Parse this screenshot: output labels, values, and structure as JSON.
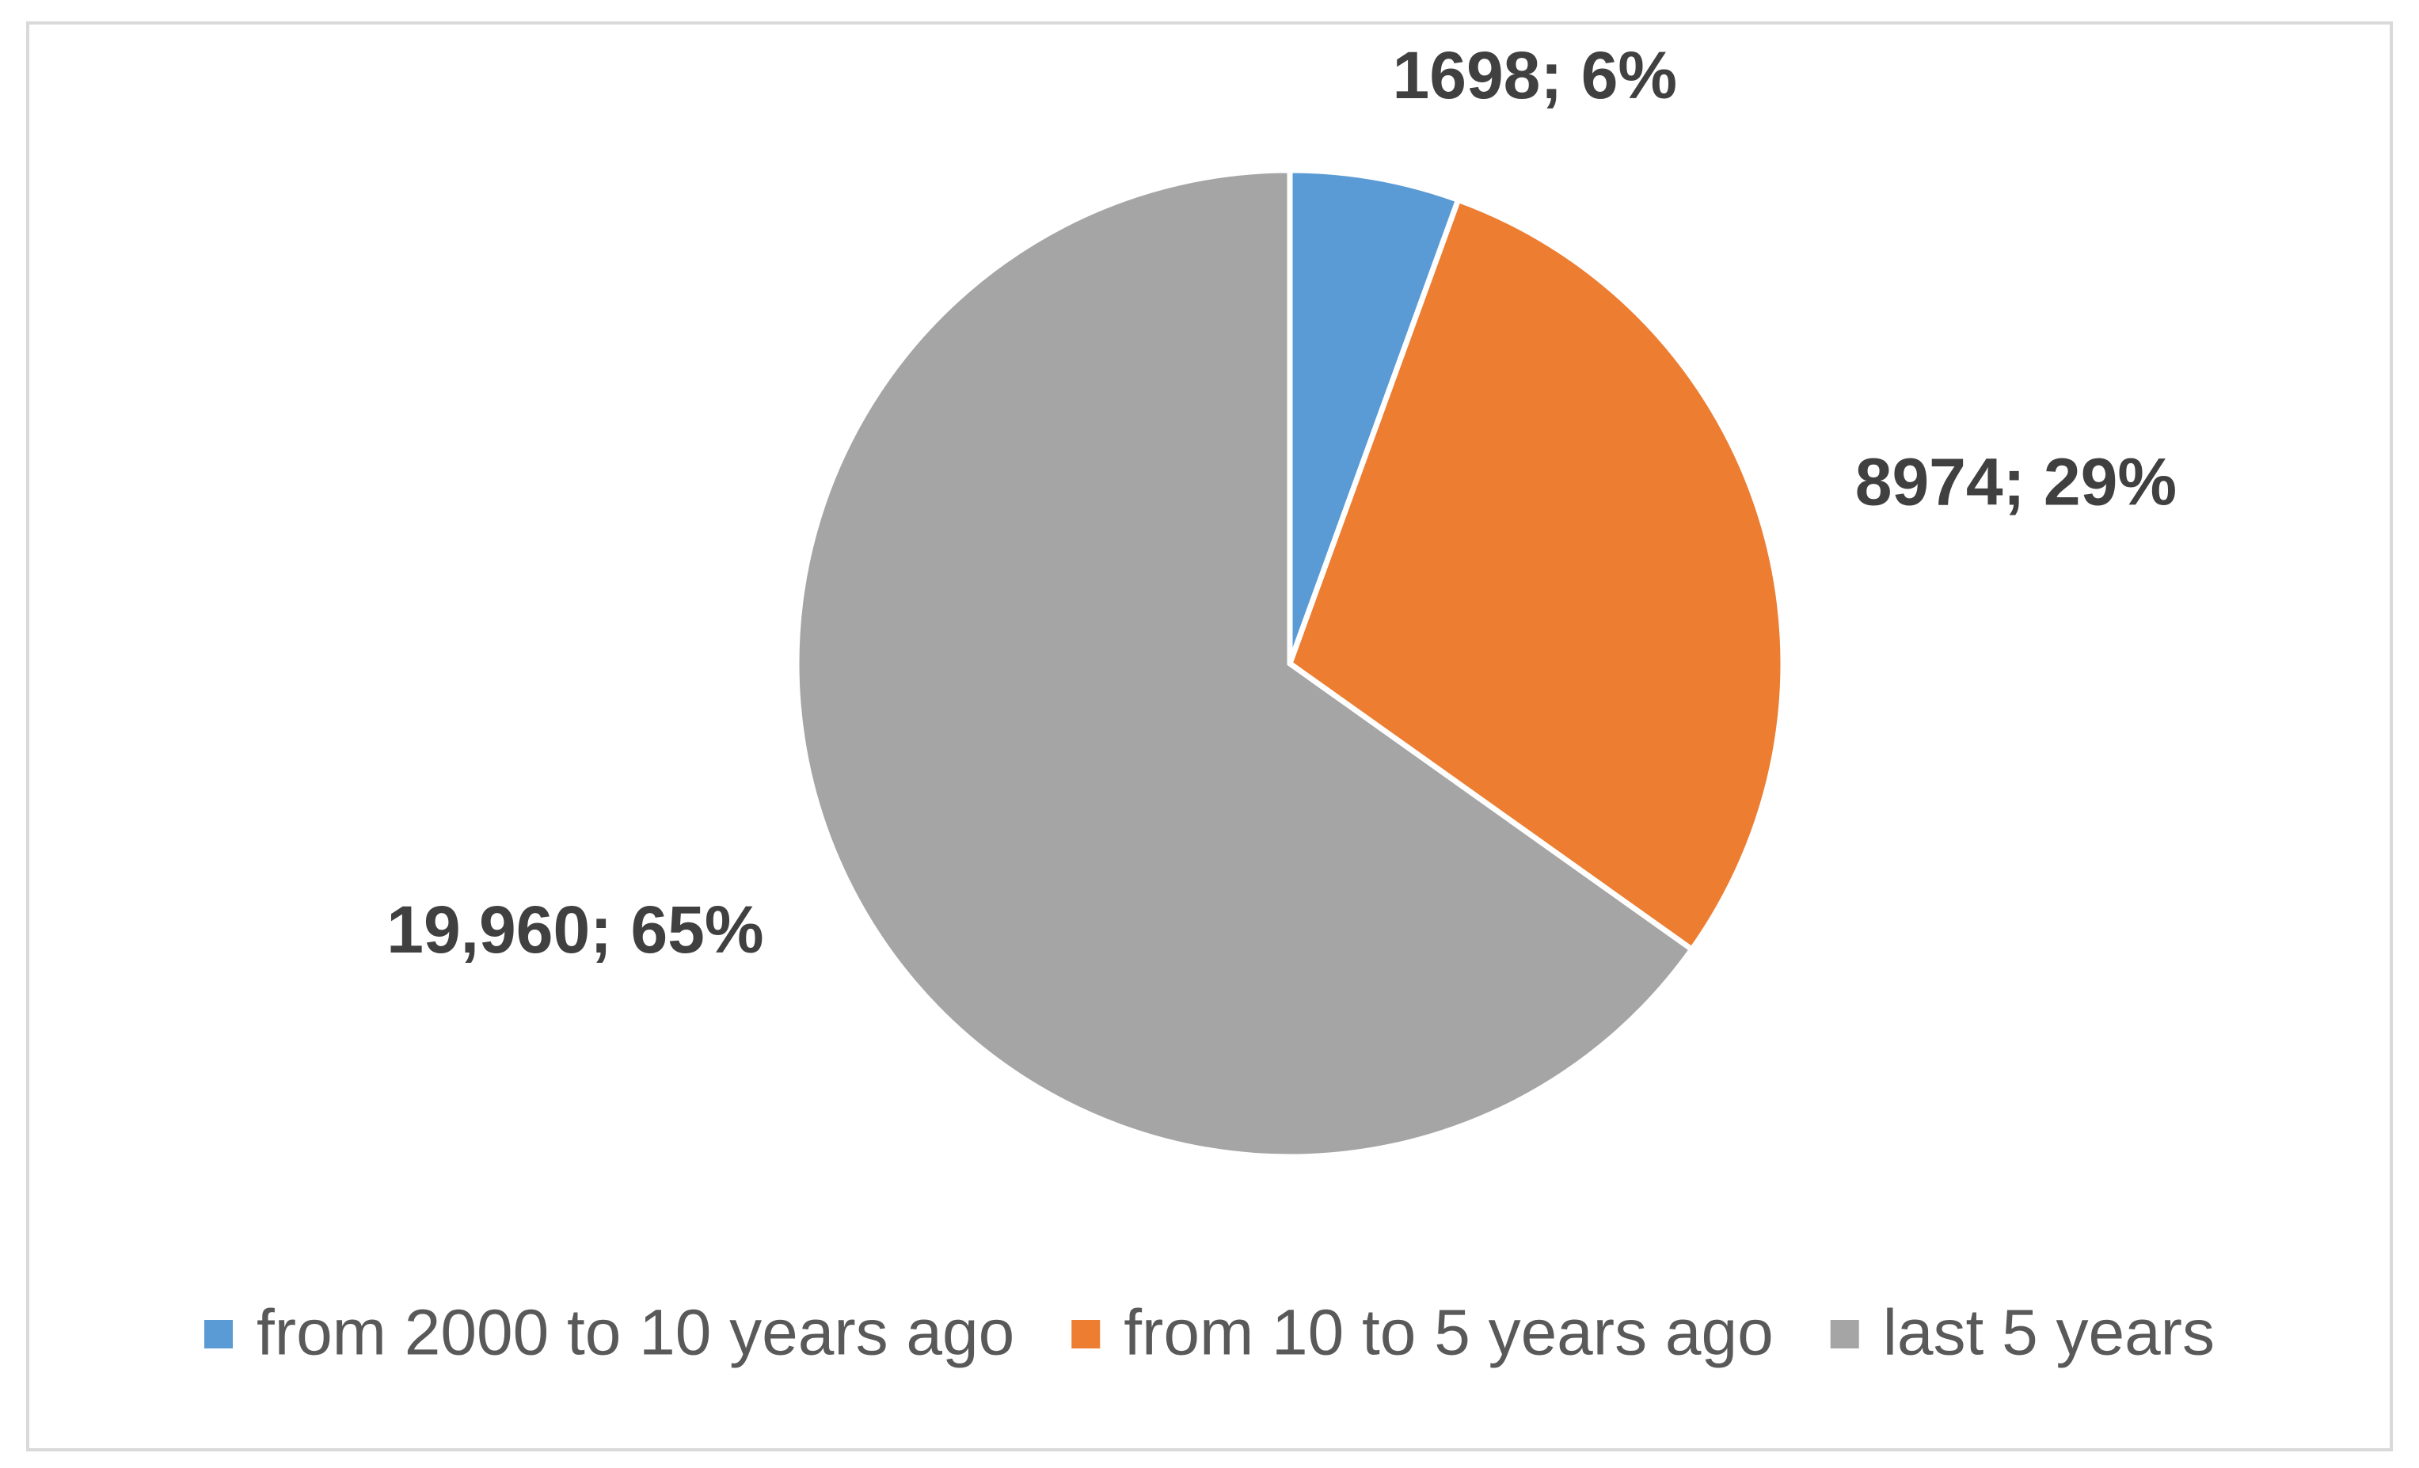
{
  "chart_data": {
    "type": "pie",
    "categories": [
      "from 2000 to 10 years ago",
      "from 10 to 5 years ago",
      "last 5 years"
    ],
    "values": [
      1698,
      8974,
      19960
    ],
    "value_labels": [
      "1698; 6%",
      "8974; 29%",
      "19,960; 65%"
    ],
    "colors": [
      "#5b9bd5",
      "#ed7d31",
      "#a5a5a5"
    ],
    "legend": "bottom"
  }
}
